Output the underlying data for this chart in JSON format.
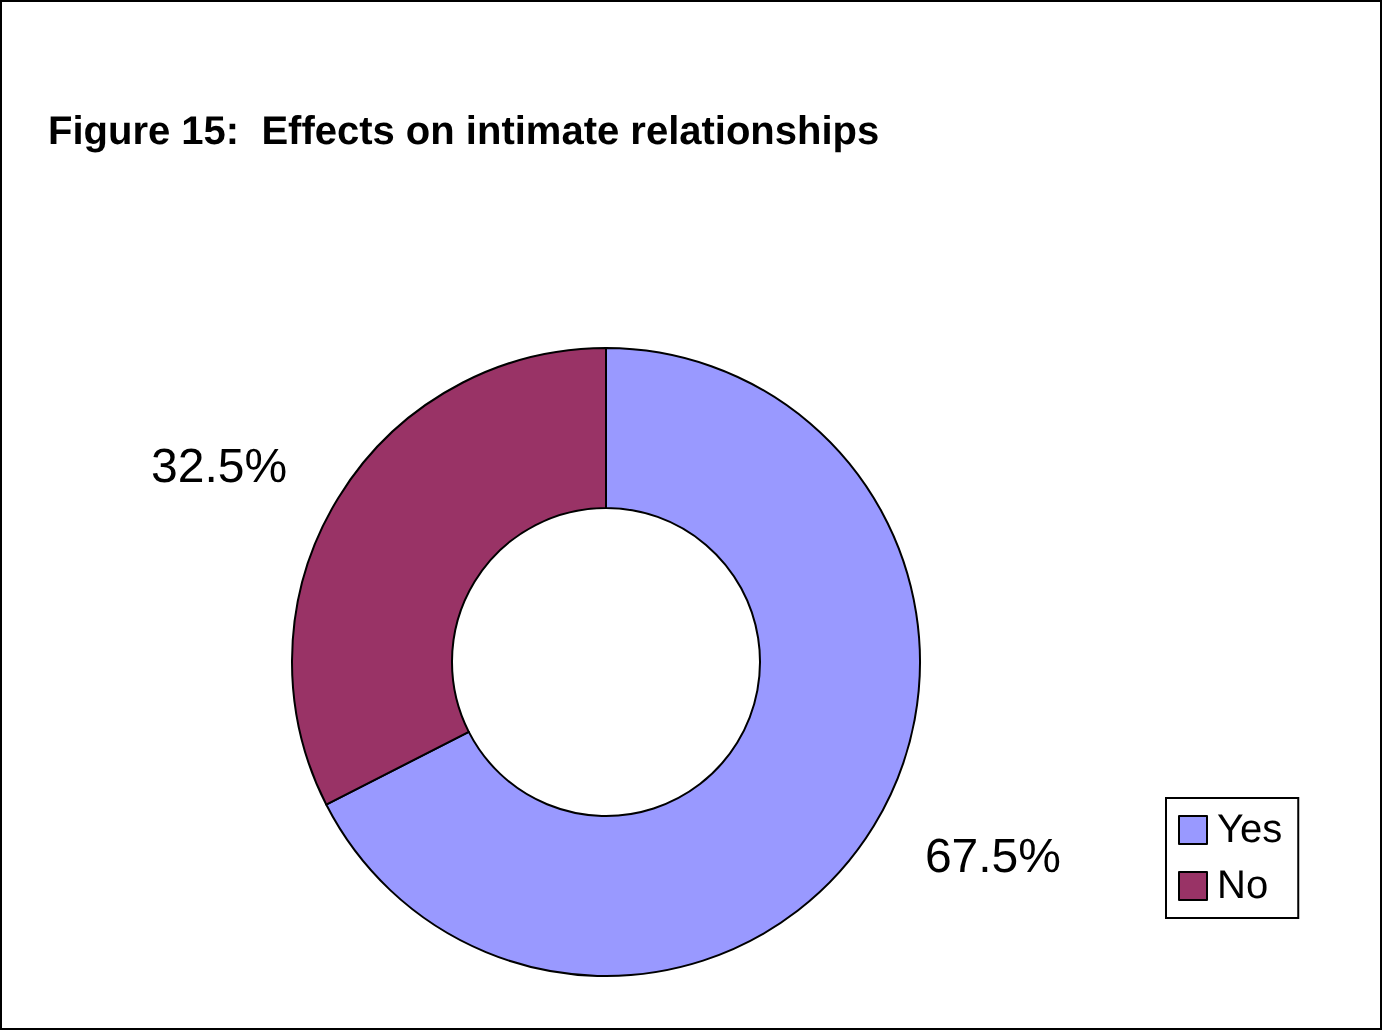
{
  "chart_data": {
    "type": "donut",
    "title": "Figure 15:  Effects on intimate relationships",
    "categories": [
      "Yes",
      "No"
    ],
    "values": [
      67.5,
      32.5
    ],
    "colors": [
      "#9999ff",
      "#993366"
    ],
    "value_labels": [
      "67.5%",
      "32.5%"
    ],
    "legend": "right"
  }
}
